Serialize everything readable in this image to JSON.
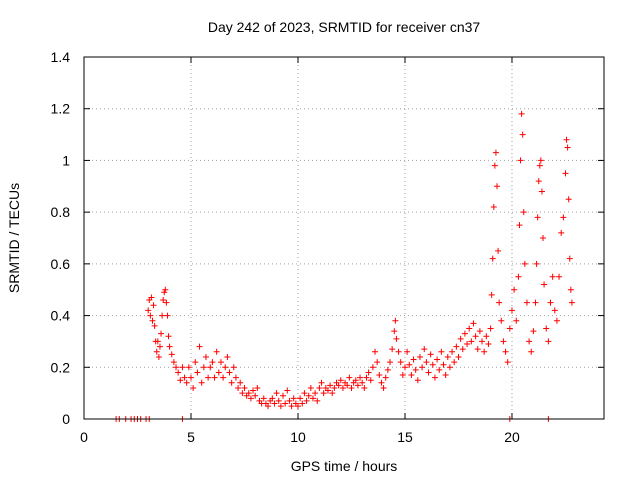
{
  "chart_data": {
    "type": "scatter",
    "title": "Day 242 of 2023, SRMTID for receiver cn37",
    "xlabel": "GPS time / hours",
    "ylabel": "SRMTID / TECUs",
    "xlim": [
      0,
      24.3
    ],
    "ylim": [
      0,
      1.4
    ],
    "x_ticks": [
      0,
      5,
      10,
      15,
      20
    ],
    "x_tick_labels": [
      "0",
      "5",
      "10",
      "15",
      "20"
    ],
    "y_ticks": [
      0,
      0.2,
      0.4,
      0.6,
      0.8,
      1.0,
      1.2,
      1.4
    ],
    "y_tick_labels": [
      "0",
      "0.2",
      "0.4",
      "0.6",
      "0.8",
      "1",
      "1.2",
      "1.4"
    ],
    "grid": true,
    "legend": "none",
    "marker": "plus",
    "color": "#ff0000",
    "series": [
      {
        "name": "SRMTID",
        "points": [
          [
            1.5,
            0.0
          ],
          [
            1.65,
            0.0
          ],
          [
            1.95,
            0.0
          ],
          [
            2.2,
            0.0
          ],
          [
            2.35,
            0.0
          ],
          [
            2.5,
            0.0
          ],
          [
            2.65,
            0.0
          ],
          [
            2.9,
            0.0
          ],
          [
            3.05,
            0.0
          ],
          [
            4.6,
            0.0
          ],
          [
            19.9,
            0.0
          ],
          [
            21.7,
            0.0
          ],
          [
            3.0,
            0.42
          ],
          [
            3.05,
            0.46
          ],
          [
            3.1,
            0.4
          ],
          [
            3.15,
            0.47
          ],
          [
            3.2,
            0.38
          ],
          [
            3.25,
            0.44
          ],
          [
            3.3,
            0.36
          ],
          [
            3.35,
            0.3
          ],
          [
            3.4,
            0.26
          ],
          [
            3.45,
            0.3
          ],
          [
            3.5,
            0.24
          ],
          [
            3.55,
            0.28
          ],
          [
            3.6,
            0.33
          ],
          [
            3.65,
            0.4
          ],
          [
            3.7,
            0.46
          ],
          [
            3.75,
            0.49
          ],
          [
            3.8,
            0.5
          ],
          [
            3.85,
            0.45
          ],
          [
            3.9,
            0.4
          ],
          [
            3.95,
            0.32
          ],
          [
            4.0,
            0.28
          ],
          [
            4.1,
            0.25
          ],
          [
            4.2,
            0.22
          ],
          [
            4.3,
            0.2
          ],
          [
            4.4,
            0.18
          ],
          [
            4.5,
            0.15
          ],
          [
            4.6,
            0.2
          ],
          [
            4.7,
            0.16
          ],
          [
            4.8,
            0.14
          ],
          [
            4.9,
            0.2
          ],
          [
            5.0,
            0.16
          ],
          [
            5.1,
            0.12
          ],
          [
            5.2,
            0.22
          ],
          [
            5.3,
            0.18
          ],
          [
            5.4,
            0.28
          ],
          [
            5.5,
            0.14
          ],
          [
            5.6,
            0.2
          ],
          [
            5.7,
            0.24
          ],
          [
            5.8,
            0.16
          ],
          [
            5.9,
            0.2
          ],
          [
            6.0,
            0.22
          ],
          [
            6.1,
            0.16
          ],
          [
            6.2,
            0.26
          ],
          [
            6.3,
            0.18
          ],
          [
            6.4,
            0.22
          ],
          [
            6.5,
            0.16
          ],
          [
            6.6,
            0.2
          ],
          [
            6.7,
            0.24
          ],
          [
            6.8,
            0.18
          ],
          [
            6.9,
            0.14
          ],
          [
            7.0,
            0.2
          ],
          [
            7.1,
            0.16
          ],
          [
            7.2,
            0.12
          ],
          [
            7.3,
            0.14
          ],
          [
            7.4,
            0.1
          ],
          [
            7.5,
            0.12
          ],
          [
            7.6,
            0.09
          ],
          [
            7.7,
            0.1
          ],
          [
            7.8,
            0.08
          ],
          [
            7.9,
            0.11
          ],
          [
            8.0,
            0.09
          ],
          [
            8.1,
            0.12
          ],
          [
            8.2,
            0.07
          ],
          [
            8.3,
            0.06
          ],
          [
            8.4,
            0.08
          ],
          [
            8.5,
            0.06
          ],
          [
            8.6,
            0.05
          ],
          [
            8.7,
            0.07
          ],
          [
            8.8,
            0.08
          ],
          [
            8.9,
            0.06
          ],
          [
            9.0,
            0.1
          ],
          [
            9.1,
            0.07
          ],
          [
            9.2,
            0.05
          ],
          [
            9.3,
            0.09
          ],
          [
            9.4,
            0.06
          ],
          [
            9.5,
            0.11
          ],
          [
            9.6,
            0.07
          ],
          [
            9.7,
            0.05
          ],
          [
            9.8,
            0.08
          ],
          [
            9.9,
            0.06
          ],
          [
            10.0,
            0.05
          ],
          [
            10.1,
            0.08
          ],
          [
            10.2,
            0.06
          ],
          [
            10.3,
            0.1
          ],
          [
            10.4,
            0.07
          ],
          [
            10.5,
            0.09
          ],
          [
            10.6,
            0.12
          ],
          [
            10.7,
            0.08
          ],
          [
            10.8,
            0.1
          ],
          [
            10.9,
            0.07
          ],
          [
            11.0,
            0.12
          ],
          [
            11.1,
            0.14
          ],
          [
            11.2,
            0.1
          ],
          [
            11.3,
            0.12
          ],
          [
            11.4,
            0.11
          ],
          [
            11.5,
            0.13
          ],
          [
            11.6,
            0.1
          ],
          [
            11.7,
            0.12
          ],
          [
            11.8,
            0.14
          ],
          [
            11.9,
            0.13
          ],
          [
            12.0,
            0.15
          ],
          [
            12.1,
            0.12
          ],
          [
            12.2,
            0.14
          ],
          [
            12.3,
            0.13
          ],
          [
            12.4,
            0.16
          ],
          [
            12.5,
            0.12
          ],
          [
            12.6,
            0.14
          ],
          [
            12.7,
            0.15
          ],
          [
            12.8,
            0.13
          ],
          [
            12.9,
            0.16
          ],
          [
            13.0,
            0.14
          ],
          [
            13.1,
            0.12
          ],
          [
            13.2,
            0.16
          ],
          [
            13.3,
            0.18
          ],
          [
            13.4,
            0.15
          ],
          [
            13.5,
            0.2
          ],
          [
            13.6,
            0.26
          ],
          [
            13.7,
            0.22
          ],
          [
            13.8,
            0.17
          ],
          [
            13.9,
            0.14
          ],
          [
            14.0,
            0.12
          ],
          [
            14.1,
            0.16
          ],
          [
            14.2,
            0.19
          ],
          [
            14.3,
            0.22
          ],
          [
            14.4,
            0.27
          ],
          [
            14.5,
            0.34
          ],
          [
            14.55,
            0.38
          ],
          [
            14.6,
            0.31
          ],
          [
            14.7,
            0.26
          ],
          [
            14.8,
            0.22
          ],
          [
            14.9,
            0.17
          ],
          [
            15.0,
            0.2
          ],
          [
            15.1,
            0.26
          ],
          [
            15.2,
            0.21
          ],
          [
            15.3,
            0.17
          ],
          [
            15.4,
            0.23
          ],
          [
            15.5,
            0.19
          ],
          [
            15.6,
            0.15
          ],
          [
            15.7,
            0.24
          ],
          [
            15.8,
            0.2
          ],
          [
            15.9,
            0.27
          ],
          [
            16.0,
            0.22
          ],
          [
            16.1,
            0.18
          ],
          [
            16.2,
            0.25
          ],
          [
            16.3,
            0.21
          ],
          [
            16.4,
            0.16
          ],
          [
            16.5,
            0.23
          ],
          [
            16.6,
            0.19
          ],
          [
            16.7,
            0.26
          ],
          [
            16.8,
            0.21
          ],
          [
            16.9,
            0.17
          ],
          [
            17.0,
            0.24
          ],
          [
            17.1,
            0.2
          ],
          [
            17.2,
            0.26
          ],
          [
            17.3,
            0.22
          ],
          [
            17.4,
            0.28
          ],
          [
            17.5,
            0.24
          ],
          [
            17.6,
            0.31
          ],
          [
            17.7,
            0.27
          ],
          [
            17.8,
            0.33
          ],
          [
            17.9,
            0.29
          ],
          [
            18.0,
            0.35
          ],
          [
            18.1,
            0.3
          ],
          [
            18.2,
            0.37
          ],
          [
            18.3,
            0.32
          ],
          [
            18.4,
            0.27
          ],
          [
            18.5,
            0.34
          ],
          [
            18.6,
            0.3
          ],
          [
            18.7,
            0.26
          ],
          [
            18.8,
            0.32
          ],
          [
            18.9,
            0.29
          ],
          [
            19.0,
            0.35
          ],
          [
            19.05,
            0.48
          ],
          [
            19.1,
            0.62
          ],
          [
            19.15,
            0.82
          ],
          [
            19.2,
            0.98
          ],
          [
            19.25,
            1.03
          ],
          [
            19.3,
            0.9
          ],
          [
            19.35,
            0.65
          ],
          [
            19.4,
            0.45
          ],
          [
            19.5,
            0.38
          ],
          [
            19.6,
            0.3
          ],
          [
            19.7,
            0.26
          ],
          [
            19.8,
            0.22
          ],
          [
            19.9,
            0.35
          ],
          [
            20.0,
            0.42
          ],
          [
            20.1,
            0.5
          ],
          [
            20.2,
            0.38
          ],
          [
            20.3,
            0.55
          ],
          [
            20.35,
            0.75
          ],
          [
            20.4,
            1.0
          ],
          [
            20.45,
            1.18
          ],
          [
            20.5,
            1.1
          ],
          [
            20.55,
            0.8
          ],
          [
            20.6,
            0.6
          ],
          [
            20.7,
            0.45
          ],
          [
            20.8,
            0.3
          ],
          [
            20.9,
            0.26
          ],
          [
            21.0,
            0.34
          ],
          [
            21.1,
            0.45
          ],
          [
            21.15,
            0.6
          ],
          [
            21.2,
            0.78
          ],
          [
            21.25,
            0.92
          ],
          [
            21.3,
            0.98
          ],
          [
            21.35,
            1.0
          ],
          [
            21.4,
            0.88
          ],
          [
            21.45,
            0.7
          ],
          [
            21.5,
            0.52
          ],
          [
            21.6,
            0.35
          ],
          [
            21.7,
            0.3
          ],
          [
            21.8,
            0.45
          ],
          [
            21.9,
            0.55
          ],
          [
            22.0,
            0.42
          ],
          [
            22.1,
            0.38
          ],
          [
            22.2,
            0.55
          ],
          [
            22.3,
            0.72
          ],
          [
            22.4,
            0.78
          ],
          [
            22.5,
            0.95
          ],
          [
            22.55,
            1.08
          ],
          [
            22.6,
            1.05
          ],
          [
            22.65,
            0.85
          ],
          [
            22.7,
            0.62
          ],
          [
            22.75,
            0.5
          ],
          [
            22.8,
            0.45
          ]
        ]
      }
    ]
  }
}
